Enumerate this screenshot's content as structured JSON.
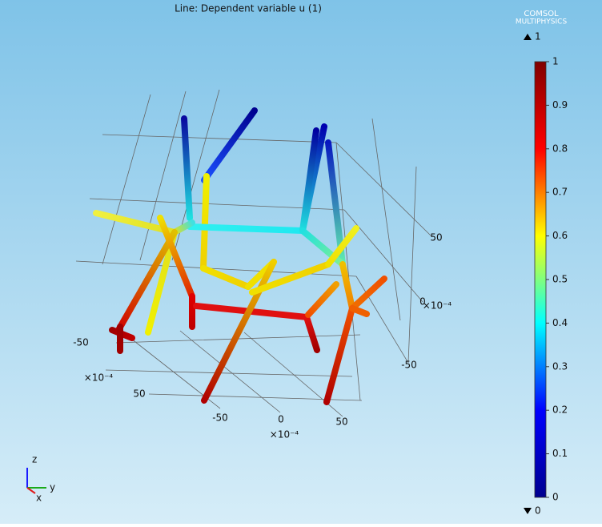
{
  "header": {
    "title": "Line: Dependent variable u (1)",
    "logo_line1": "COMSOL",
    "logo_line2": "MULTIPHYSICS"
  },
  "colorbar": {
    "max_label": 1,
    "min_label": 0,
    "ticks": [
      0,
      0.1,
      0.2,
      0.3,
      0.4,
      0.5,
      0.6,
      0.7,
      0.8,
      0.9,
      1
    ],
    "lim": [
      0,
      1
    ],
    "colors": [
      "#00008f",
      "#0000ff",
      "#00ffff",
      "#ffff00",
      "#ff0000",
      "#800000"
    ]
  },
  "axes": {
    "front": {
      "ticks": [
        -50,
        0,
        50
      ],
      "multiplier": "×10⁻⁴"
    },
    "left": {
      "ticks": [
        -50,
        50
      ],
      "multiplier": "×10⁻⁴"
    },
    "right": {
      "ticks": [
        50,
        0,
        -50
      ],
      "multiplier": "×10⁻⁴"
    }
  },
  "triad": {
    "z": "z",
    "y": "y",
    "x": "x"
  }
}
